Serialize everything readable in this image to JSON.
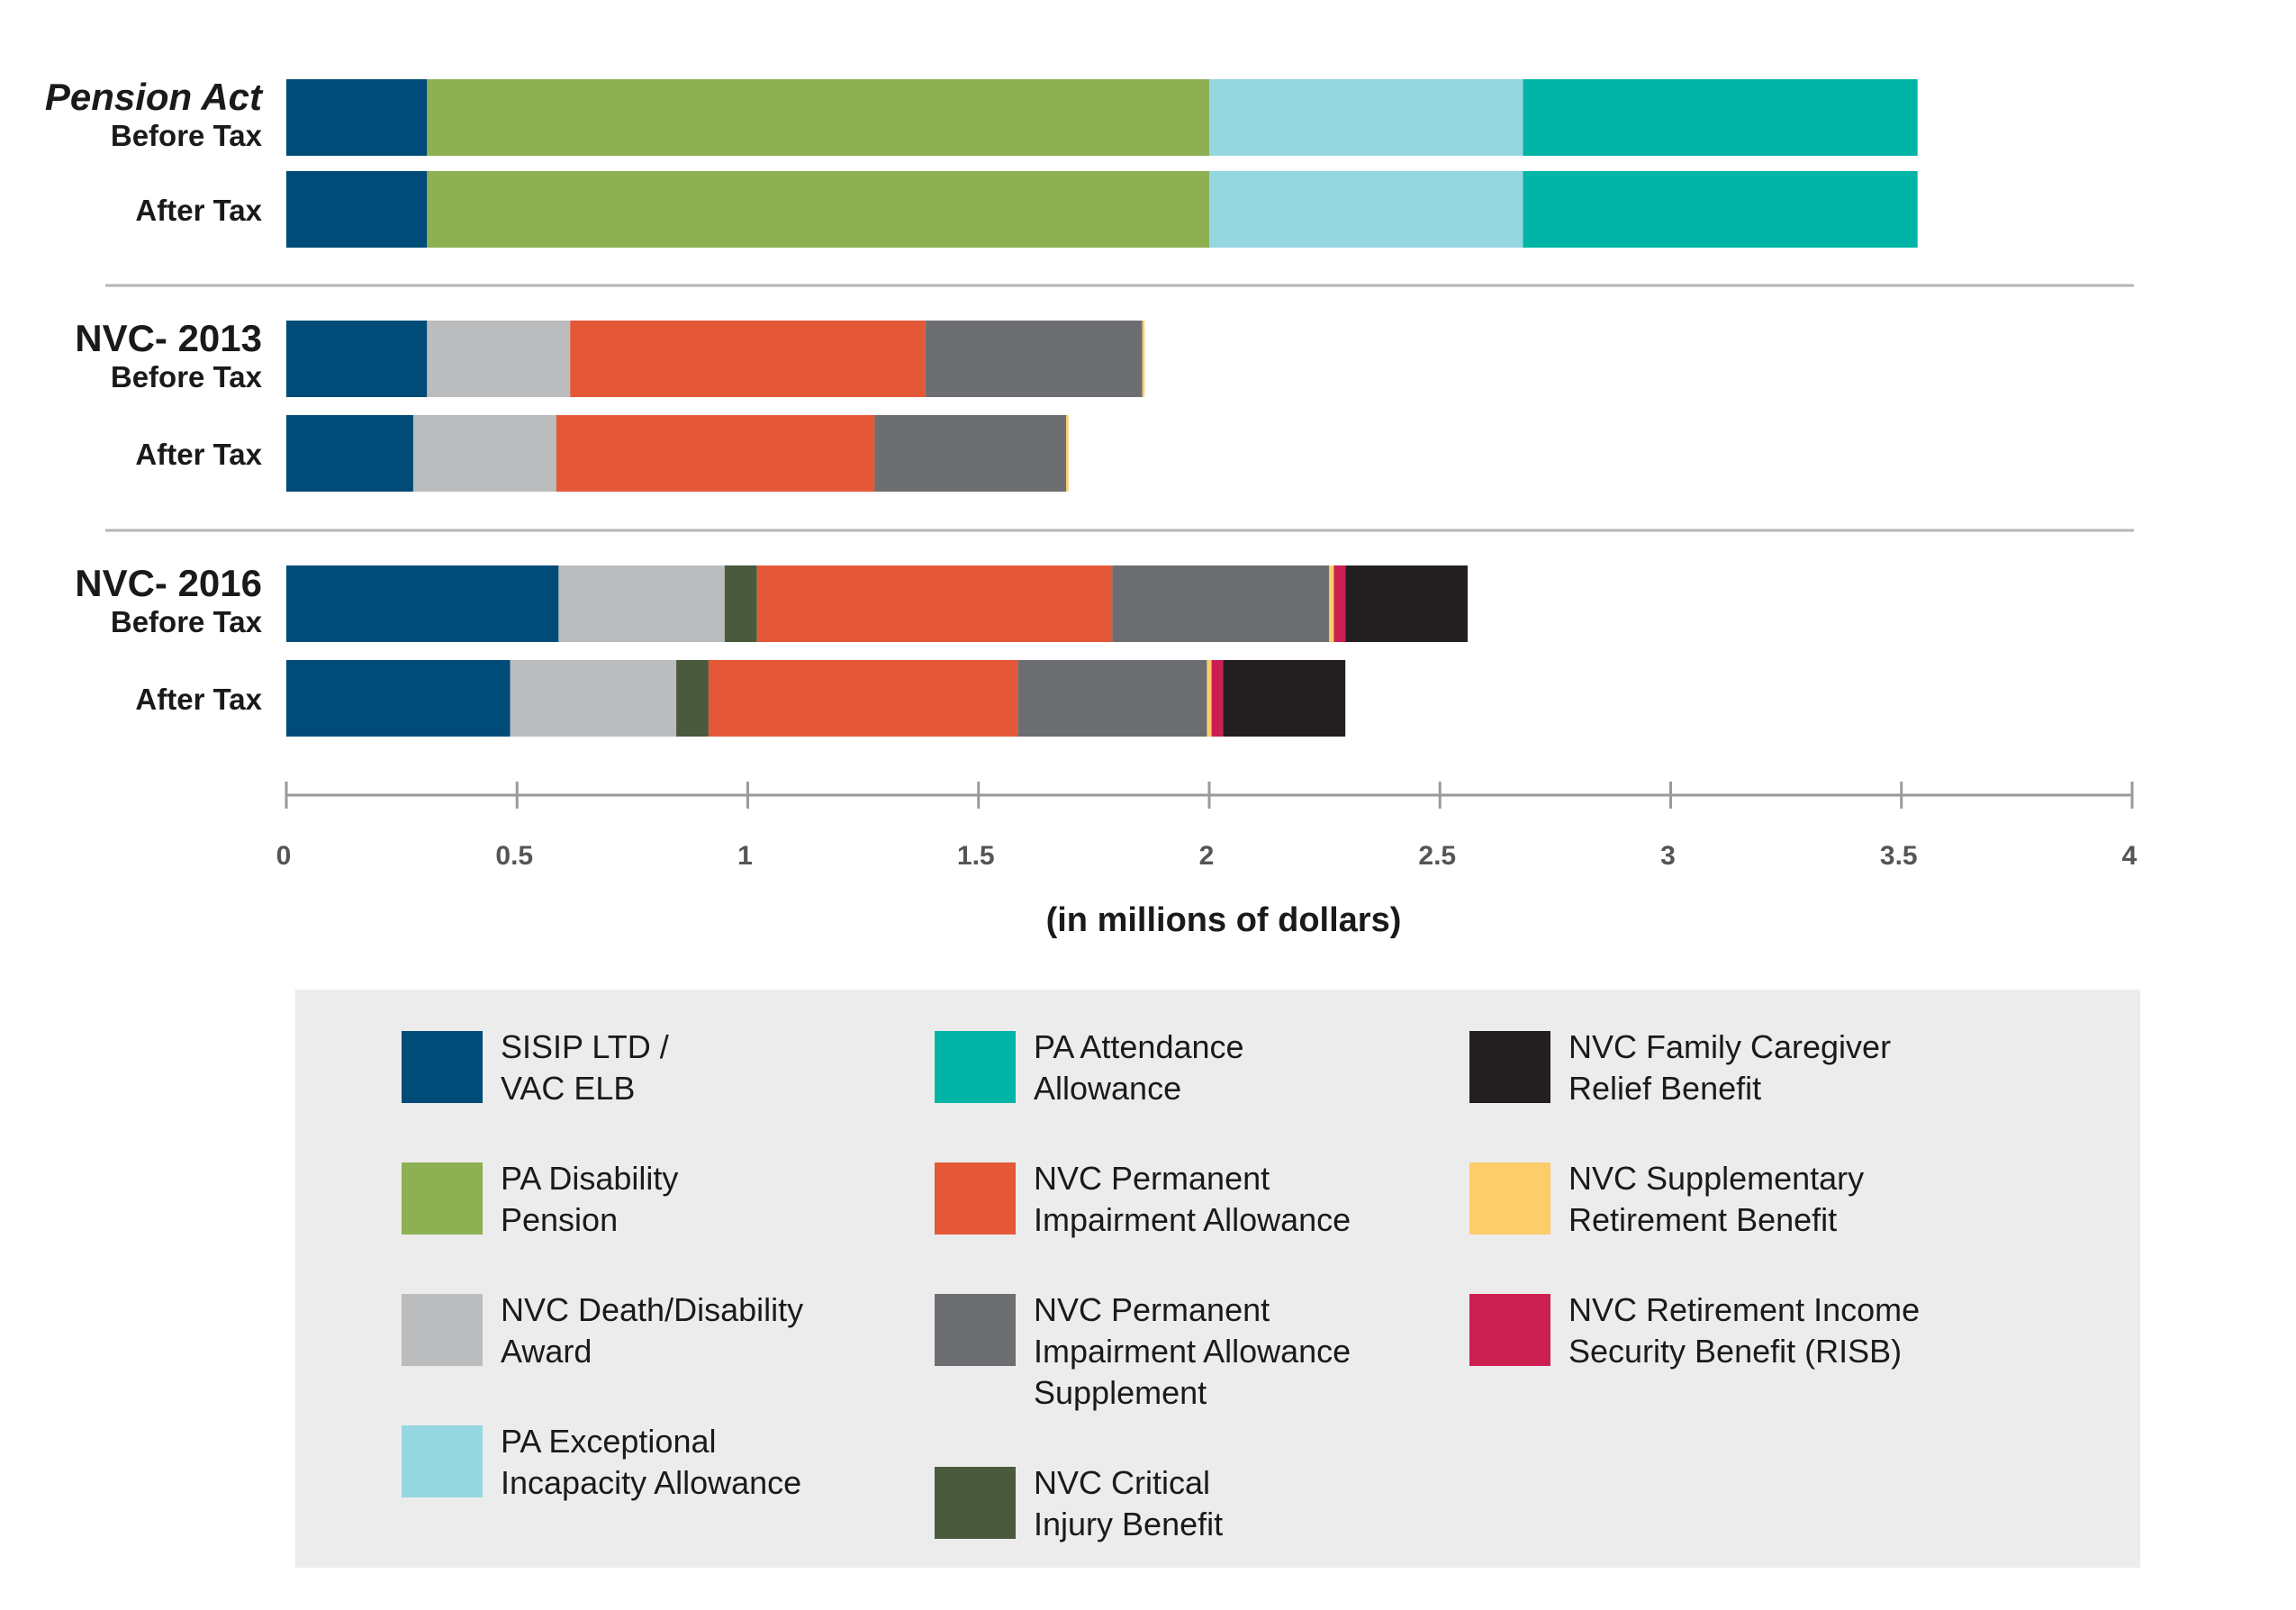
{
  "chart_data": {
    "type": "bar",
    "orientation": "horizontal",
    "stacked": true,
    "xlabel": "(in millions of dollars)",
    "xlim": [
      0,
      4
    ],
    "x_ticks": [
      "0",
      "0.5",
      "1",
      "1.5",
      "2",
      "2.5",
      "3",
      "3.5",
      "4"
    ],
    "legend_position": "bottom",
    "groups": [
      {
        "title": "Pension Act",
        "title_italic": true,
        "rows": [
          {
            "label": "Before Tax",
            "segments": [
              {
                "series": "SISIP LTD / VAC ELB",
                "value": 0.305
              },
              {
                "series": "PA Disability Pension",
                "value": 1.695
              },
              {
                "series": "PA Exceptional Incapacity Allowance",
                "value": 0.68
              },
              {
                "series": "PA Attendance Allowance",
                "value": 0.855
              }
            ]
          },
          {
            "label": "After Tax",
            "segments": [
              {
                "series": "SISIP LTD / VAC ELB",
                "value": 0.305
              },
              {
                "series": "PA Disability Pension",
                "value": 1.695
              },
              {
                "series": "PA Exceptional Incapacity Allowance",
                "value": 0.68
              },
              {
                "series": "PA Attendance Allowance",
                "value": 0.855
              }
            ]
          }
        ]
      },
      {
        "title": "NVC- 2013",
        "title_italic": false,
        "rows": [
          {
            "label": "Before Tax",
            "segments": [
              {
                "series": "SISIP LTD / VAC ELB",
                "value": 0.305
              },
              {
                "series": "NVC Death/Disability Award",
                "value": 0.31
              },
              {
                "series": "NVC Permanent Impairment Allowance",
                "value": 0.77
              },
              {
                "series": "NVC Permanent Impairment Allowance Supplement",
                "value": 0.47
              },
              {
                "series": "NVC Supplementary Retirement Benefit",
                "value": 0.005
              }
            ]
          },
          {
            "label": "After Tax",
            "segments": [
              {
                "series": "SISIP LTD / VAC ELB",
                "value": 0.275
              },
              {
                "series": "NVC Death/Disability Award",
                "value": 0.31
              },
              {
                "series": "NVC Permanent Impairment Allowance",
                "value": 0.69
              },
              {
                "series": "NVC Permanent Impairment Allowance Supplement",
                "value": 0.415
              },
              {
                "series": "NVC Supplementary Retirement Benefit",
                "value": 0.005
              }
            ]
          }
        ]
      },
      {
        "title": "NVC- 2016",
        "title_italic": false,
        "rows": [
          {
            "label": "Before Tax",
            "segments": [
              {
                "series": "SISIP LTD / VAC ELB",
                "value": 0.59
              },
              {
                "series": "NVC Death/Disability Award",
                "value": 0.36
              },
              {
                "series": "NVC Critical Injury Benefit",
                "value": 0.07
              },
              {
                "series": "NVC Permanent Impairment Allowance",
                "value": 0.77
              },
              {
                "series": "NVC Permanent Impairment Allowance Supplement",
                "value": 0.47
              },
              {
                "series": "NVC Supplementary Retirement Benefit",
                "value": 0.01
              },
              {
                "series": "NVC Retirement Income Security Benefit (RISB)",
                "value": 0.025
              },
              {
                "series": "NVC Family Caregiver Relief Benefit",
                "value": 0.265
              }
            ]
          },
          {
            "label": "After Tax",
            "segments": [
              {
                "series": "SISIP LTD / VAC ELB",
                "value": 0.485
              },
              {
                "series": "NVC Death/Disability Award",
                "value": 0.36
              },
              {
                "series": "NVC Critical Injury Benefit",
                "value": 0.07
              },
              {
                "series": "NVC Permanent Impairment Allowance",
                "value": 0.67
              },
              {
                "series": "NVC Permanent Impairment Allowance Supplement",
                "value": 0.41
              },
              {
                "series": "NVC Supplementary Retirement Benefit",
                "value": 0.01
              },
              {
                "series": "NVC Retirement Income Security Benefit (RISB)",
                "value": 0.025
              },
              {
                "series": "NVC Family Caregiver Relief Benefit",
                "value": 0.265
              }
            ]
          }
        ]
      }
    ],
    "legend": [
      {
        "key": "SISIP LTD / VAC ELB",
        "lines": [
          "SISIP LTD /",
          "VAC ELB"
        ],
        "color": "#004b78"
      },
      {
        "key": "PA Disability Pension",
        "lines": [
          "PA Disability",
          "Pension"
        ],
        "color": "#8db053"
      },
      {
        "key": "NVC Death/Disability Award",
        "lines": [
          "NVC Death/Disability",
          "Award"
        ],
        "color": "#bbbcbe"
      },
      {
        "key": "PA Exceptional Incapacity Allowance",
        "lines": [
          "PA Exceptional",
          "Incapacity Allowance"
        ],
        "color": "#95d7e0"
      },
      {
        "key": "PA Attendance Allowance",
        "lines": [
          "PA Attendance",
          "Allowance"
        ],
        "color": "#00b5a5"
      },
      {
        "key": "NVC Permanent Impairment Allowance",
        "lines": [
          "NVC Permanent",
          "Impairment Allowance"
        ],
        "color": "#e45838"
      },
      {
        "key": "NVC Permanent Impairment Allowance Supplement",
        "lines": [
          "NVC Permanent",
          "Impairment Allowance",
          "Supplement"
        ],
        "color": "#6d6e71"
      },
      {
        "key": "NVC Critical Injury Benefit",
        "lines": [
          "NVC Critical",
          "Injury Benefit"
        ],
        "color": "#4a5a3c"
      },
      {
        "key": "NVC Family Caregiver Relief Benefit",
        "lines": [
          "NVC Family Caregiver",
          "Relief Benefit"
        ],
        "color": "#231f20"
      },
      {
        "key": "NVC Supplementary Retirement Benefit",
        "lines": [
          "NVC Supplementary",
          "Retirement Benefit"
        ],
        "color": "#fccd6a"
      },
      {
        "key": "NVC Retirement Income Security Benefit (RISB)",
        "lines": [
          "NVC Retirement Income",
          "Security Benefit (RISB)"
        ],
        "color": "#cc1f51"
      }
    ]
  }
}
